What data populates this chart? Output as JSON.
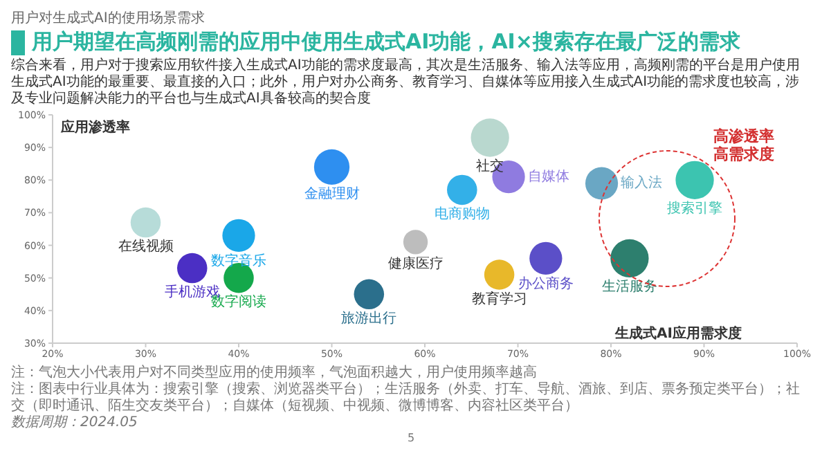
{
  "chart_data": {
    "type": "bubble",
    "title": "用户期望在高频刚需的应用中使用生成式AI功能，AI×搜索存在最广泛的需求",
    "xlabel": "生成式AI应用需求度",
    "ylabel": "应用渗透率",
    "xlim": [
      20,
      100
    ],
    "xticks": [
      {
        "value": 20,
        "label": "20%"
      },
      {
        "value": 30,
        "label": "30%"
      },
      {
        "value": 40,
        "label": "40%"
      },
      {
        "value": 50,
        "label": "50%"
      },
      {
        "value": 60,
        "label": "60%"
      },
      {
        "value": 70,
        "label": "70%"
      },
      {
        "value": 80,
        "label": "80%"
      },
      {
        "value": 90,
        "label": "90%"
      },
      {
        "value": 100,
        "label": "100%"
      }
    ],
    "ylim": [
      30,
      100
    ],
    "yticks": [
      {
        "value": 30,
        "label": "30%"
      },
      {
        "value": 40,
        "label": "40%"
      },
      {
        "value": 50,
        "label": "50%"
      },
      {
        "value": 60,
        "label": "60%"
      },
      {
        "value": 70,
        "label": "70%"
      },
      {
        "value": 80,
        "label": "80%"
      },
      {
        "value": 90,
        "label": "90%"
      },
      {
        "value": 100,
        "label": "100%"
      }
    ],
    "series": [
      {
        "name": "在线视频",
        "color": "#b7dcd9",
        "x": [
          30
        ],
        "values": [
          67
        ],
        "sizes": [
          0.62
        ]
      },
      {
        "name": "手机游戏",
        "color": "#4b2fc4",
        "x": [
          35
        ],
        "values": [
          53
        ],
        "sizes": [
          0.62
        ]
      },
      {
        "name": "数字音乐",
        "color": "#1aa7e8",
        "x": [
          40
        ],
        "values": [
          63
        ],
        "sizes": [
          0.73
        ]
      },
      {
        "name": "数字阅读",
        "color": "#14a84b",
        "x": [
          40
        ],
        "values": [
          50
        ],
        "sizes": [
          0.62
        ]
      },
      {
        "name": "金融理财",
        "color": "#2e8ff0",
        "x": [
          50
        ],
        "values": [
          84
        ],
        "sizes": [
          0.86
        ]
      },
      {
        "name": "旅游出行",
        "color": "#2b6f8c",
        "x": [
          54
        ],
        "values": [
          45
        ],
        "sizes": [
          0.62
        ]
      },
      {
        "name": "健康医疗",
        "color": "#bdbdbd",
        "x": [
          59
        ],
        "values": [
          61
        ],
        "sizes": [
          0.41
        ]
      },
      {
        "name": "电商购物",
        "color": "#33b0e8",
        "x": [
          64
        ],
        "values": [
          77
        ],
        "sizes": [
          0.62
        ]
      },
      {
        "name": "社交",
        "color": "#b9d8cf",
        "x": [
          67
        ],
        "values": [
          93
        ],
        "sizes": [
          1
        ]
      },
      {
        "name": "自媒体",
        "color": "#8f7be0",
        "x": [
          69
        ],
        "values": [
          81
        ],
        "sizes": [
          0.73
        ]
      },
      {
        "name": "教育学习",
        "color": "#e8b82a",
        "x": [
          68
        ],
        "values": [
          51
        ],
        "sizes": [
          0.62
        ]
      },
      {
        "name": "办公商务",
        "color": "#5b4fc8",
        "x": [
          73
        ],
        "values": [
          56
        ],
        "sizes": [
          0.73
        ]
      },
      {
        "name": "输入法",
        "color": "#6aa7c4",
        "x": [
          79
        ],
        "values": [
          79
        ],
        "sizes": [
          0.73
        ]
      },
      {
        "name": "生活服务",
        "color": "#2d7f6e",
        "x": [
          82
        ],
        "values": [
          56
        ],
        "sizes": [
          1
        ]
      },
      {
        "name": "搜索引擎",
        "color": "#3cc4b0",
        "x": [
          89
        ],
        "values": [
          80
        ],
        "sizes": [
          1
        ]
      }
    ],
    "annotations": [
      "用户对生成式AI的使用场景需求",
      "综合来看，用户对于搜索应用软件接入生成式AI功能的需求度最高，其次是生活服务、输入法等应用，高频刚需的平台是用户使用生成式AI功能的最重要、最直接的入口；此外，用户对办公商务、教育学习、自媒体等应用接入生成式AI功能的需求度也较高，涉及专业问题解决能力的平台也与生成式AI具备较高的契合度",
      "高渗透率高需求度",
      "注：气泡大小代表用户对不同类型应用的使用频率，气泡面积越大，用户使用频率越高",
      "注：图表中行业具体为：搜索引擎（搜索、浏览器类平台）；生活服务（外卖、打车、导航、酒旅、到店、票务预定类平台）；社交（即时通讯、陌生交友类平台）；自媒体（短视频、中视频、微博博客、内容社区类平台）",
      "数据周期：2024.05",
      "5"
    ]
  }
}
